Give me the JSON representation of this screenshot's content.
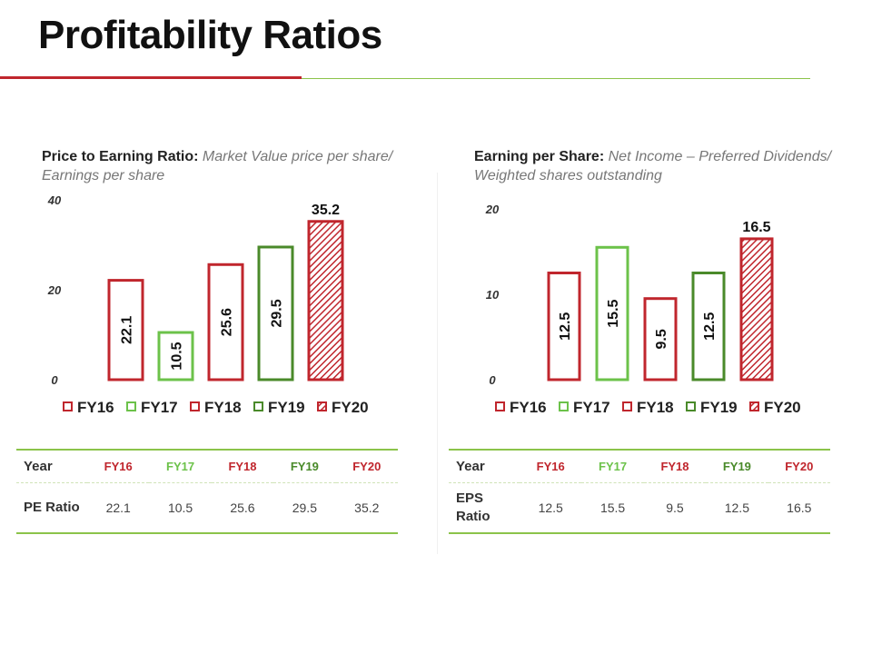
{
  "page": {
    "title": "Profitability Ratios"
  },
  "colors": {
    "red": "#c0262d",
    "light_green": "#6cc24a",
    "dark_green": "#4a8a2a",
    "divider_red": "#c0262d",
    "divider_green": "#8bc34a"
  },
  "legend": [
    "FY16",
    "FY17",
    "FY18",
    "FY19",
    "FY20"
  ],
  "pe": {
    "heading": "Price to Earning Ratio:",
    "formula": "Market Value price per share/ Earnings per share",
    "table": {
      "year_label": "Year",
      "row_label": "PE Ratio",
      "years": [
        "FY16",
        "FY17",
        "FY18",
        "FY19",
        "FY20"
      ],
      "values": [
        "22.1",
        "10.5",
        "25.6",
        "29.5",
        "35.2"
      ]
    }
  },
  "eps": {
    "heading": "Earning per Share:",
    "formula": "Net Income – Preferred Dividends/ Weighted shares outstanding",
    "table": {
      "year_label": "Year",
      "row_label": "EPS Ratio",
      "years": [
        "FY16",
        "FY17",
        "FY18",
        "FY19",
        "FY20"
      ],
      "values": [
        "12.5",
        "15.5",
        "9.5",
        "12.5",
        "16.5"
      ]
    }
  },
  "chart_data": [
    {
      "type": "bar",
      "title": "Price to Earning Ratio",
      "categories": [
        "FY16",
        "FY17",
        "FY18",
        "FY19",
        "FY20"
      ],
      "values": [
        22.1,
        10.5,
        25.6,
        29.5,
        35.2
      ],
      "ylim": [
        0,
        40
      ],
      "yticks": [
        0,
        20,
        40
      ],
      "xlabel": "",
      "ylabel": "",
      "legend": "bottom"
    },
    {
      "type": "bar",
      "title": "Earning per Share",
      "categories": [
        "FY16",
        "FY17",
        "FY18",
        "FY19",
        "FY20"
      ],
      "values": [
        12.5,
        15.5,
        9.5,
        12.5,
        16.5
      ],
      "ylim": [
        0,
        20
      ],
      "yticks": [
        0,
        10,
        20
      ],
      "xlabel": "",
      "ylabel": "",
      "legend": "bottom"
    }
  ]
}
